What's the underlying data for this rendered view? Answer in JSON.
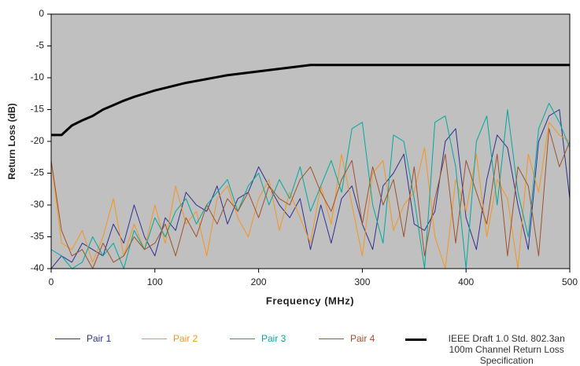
{
  "chart_data": {
    "type": "line",
    "ylabel": "Return Loss (dB)",
    "xlabel": "Frequency (MHz)",
    "xlim": [
      0,
      500
    ],
    "xticks": [
      0,
      100,
      200,
      300,
      400,
      500
    ],
    "ylim": [
      -40,
      0
    ],
    "yticks": [
      0,
      -5,
      -10,
      -15,
      -20,
      -25,
      -30,
      -35,
      -40
    ],
    "background": "#c0c0c0",
    "x": [
      0,
      10,
      20,
      30,
      40,
      50,
      60,
      70,
      80,
      90,
      100,
      110,
      120,
      130,
      140,
      150,
      160,
      170,
      180,
      190,
      200,
      210,
      220,
      230,
      240,
      250,
      260,
      270,
      280,
      290,
      300,
      310,
      320,
      330,
      340,
      350,
      360,
      370,
      380,
      390,
      400,
      410,
      420,
      430,
      440,
      450,
      460,
      470,
      480,
      490,
      500
    ],
    "series": [
      {
        "name": "Pair 1",
        "color": "#2e3192",
        "width": 1,
        "values": [
          -40,
          -38,
          -39,
          -36,
          -37,
          -38,
          -33,
          -36,
          -30,
          -35,
          -38,
          -32,
          -34,
          -28,
          -30,
          -31,
          -27,
          -33,
          -29,
          -28,
          -24,
          -27,
          -30,
          -32,
          -29,
          -37,
          -30,
          -36,
          -29,
          -27,
          -33,
          -37,
          -27,
          -25,
          -22,
          -33,
          -34,
          -31,
          -20,
          -18,
          -32,
          -37,
          -26,
          -19,
          -21,
          -30,
          -37,
          -20,
          -16,
          -15,
          -29
        ]
      },
      {
        "name": "Pair 2",
        "color": "#f7941d",
        "width": 1,
        "values": [
          -23,
          -36,
          -37,
          -34,
          -39,
          -35,
          -29,
          -38,
          -33,
          -37,
          -30,
          -36,
          -27,
          -33,
          -31,
          -38,
          -29,
          -27,
          -32,
          -35,
          -29,
          -26,
          -34,
          -28,
          -32,
          -36,
          -27,
          -33,
          -22,
          -30,
          -38,
          -25,
          -23,
          -34,
          -30,
          -28,
          -21,
          -35,
          -40,
          -26,
          -31,
          -22,
          -35,
          -26,
          -29,
          -40,
          -22,
          -28,
          -17,
          -19,
          -20
        ]
      },
      {
        "name": "Pair 3",
        "color": "#00a99d",
        "width": 1,
        "values": [
          -37,
          -38,
          -40,
          -39,
          -35,
          -38,
          -36,
          -40,
          -34,
          -37,
          -32,
          -35,
          -31,
          -29,
          -33,
          -30,
          -28,
          -26,
          -31,
          -27,
          -25,
          -30,
          -26,
          -29,
          -24,
          -31,
          -27,
          -23,
          -28,
          -18,
          -17,
          -30,
          -36,
          -19,
          -20,
          -29,
          -40,
          -17,
          -16,
          -24,
          -40,
          -20,
          -16,
          -30,
          -15,
          -28,
          -35,
          -18,
          -14,
          -17,
          -21
        ]
      },
      {
        "name": "Pair 4",
        "color": "#a0522d",
        "width": 1,
        "values": [
          -23,
          -34,
          -38,
          -37,
          -40,
          -36,
          -39,
          -38,
          -35,
          -37,
          -36,
          -33,
          -38,
          -32,
          -35,
          -30,
          -33,
          -29,
          -31,
          -28,
          -32,
          -27,
          -29,
          -30,
          -26,
          -24,
          -28,
          -31,
          -26,
          -23,
          -33,
          -24,
          -30,
          -26,
          -35,
          -24,
          -38,
          -29,
          -22,
          -36,
          -23,
          -28,
          -33,
          -22,
          -38,
          -24,
          -27,
          -38,
          -18,
          -24,
          -20
        ]
      },
      {
        "name": "IEEE Draft 1.0 Std. 802.3an\n100m Channel Return Loss Specification",
        "color": "#000000",
        "width": 3,
        "values": [
          -19,
          -19,
          -17.5,
          -16.7,
          -16,
          -15,
          -14.3,
          -13.6,
          -13,
          -12.5,
          -12,
          -11.6,
          -11.2,
          -10.8,
          -10.5,
          -10.2,
          -9.9,
          -9.6,
          -9.4,
          -9.2,
          -9,
          -8.8,
          -8.6,
          -8.4,
          -8.2,
          -8,
          -8,
          -8,
          -8,
          -8,
          -8,
          -8,
          -8,
          -8,
          -8,
          -8,
          -8,
          -8,
          -8,
          -8,
          -8,
          -8,
          -8,
          -8,
          -8,
          -8,
          -8,
          -8,
          -8,
          -8,
          -8
        ]
      }
    ]
  }
}
